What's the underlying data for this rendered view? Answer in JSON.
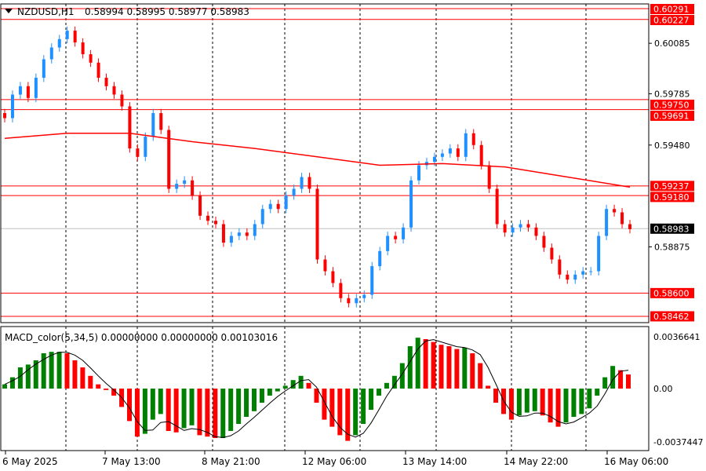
{
  "header": {
    "symbol": "NZDUSD,H1",
    "ohlc": "0.58994 0.58995 0.58977 0.58983"
  },
  "colors": {
    "bull": "#1e90ff",
    "bear": "#ff0000",
    "ma": "#ff0000",
    "level": "#ff0000",
    "hist_up": "#008000",
    "hist_down": "#ff0000",
    "signal": "#000000",
    "current": "#000000"
  },
  "price_axis": {
    "ticks": [
      "0.60085",
      "0.59785",
      "0.59480",
      "0.58875"
    ],
    "tick_values": [
      0.60085,
      0.59785,
      0.5948,
      0.58875
    ]
  },
  "levels": [
    {
      "label": "0.60291",
      "value": 0.60291
    },
    {
      "label": "0.60227",
      "value": 0.60227
    },
    {
      "label": "0.59750",
      "value": 0.5975
    },
    {
      "label": "0.59691",
      "value": 0.59691
    },
    {
      "label": "0.59237",
      "value": 0.59237
    },
    {
      "label": "0.59180",
      "value": 0.5918
    },
    {
      "label": "0.58600",
      "value": 0.586
    },
    {
      "label": "0.58462",
      "value": 0.58462
    }
  ],
  "current_price": {
    "label": "0.58983",
    "value": 0.58983
  },
  "macd": {
    "title": "MACD_color(5,34,5) 0.00000000 0.00000000 0.00103016",
    "axis_top": "0.0036641",
    "axis_zero": "0.00",
    "axis_bottom": "-0.0037447",
    "top": 0.0036641,
    "bottom": -0.0037447
  },
  "time_axis": [
    "6 May 2025",
    "7 May 13:00",
    "8 May 21:00",
    "12 May 06:00",
    "13 May 14:00",
    "14 May 22:00",
    "16 May 06:00"
  ],
  "chart_data": {
    "type": "candlestick",
    "closes": [
      0.5964,
      0.5978,
      0.5983,
      0.5976,
      0.5988,
      0.5999,
      0.6006,
      0.6011,
      0.6016,
      0.6009,
      0.6002,
      0.5997,
      0.5988,
      0.5983,
      0.5978,
      0.5971,
      0.5946,
      0.5941,
      0.5953,
      0.5967,
      0.5957,
      0.5922,
      0.5925,
      0.5927,
      0.5918,
      0.5906,
      0.5903,
      0.5901,
      0.589,
      0.5894,
      0.5896,
      0.5894,
      0.5901,
      0.591,
      0.5913,
      0.591,
      0.5918,
      0.5922,
      0.5929,
      0.5922,
      0.588,
      0.5873,
      0.5866,
      0.5857,
      0.5854,
      0.5857,
      0.5859,
      0.5876,
      0.5885,
      0.5894,
      0.5892,
      0.5899,
      0.5927,
      0.5936,
      0.5938,
      0.5941,
      0.5943,
      0.5946,
      0.5941,
      0.5955,
      0.5948,
      0.5936,
      0.5922,
      0.5901,
      0.5896,
      0.5899,
      0.5901,
      0.5899,
      0.5894,
      0.5887,
      0.588,
      0.5871,
      0.5868,
      0.5871,
      0.5873,
      0.5873,
      0.5894,
      0.591,
      0.5908,
      0.5901,
      0.5898
    ],
    "moving_average": [
      0.5952,
      0.5955,
      0.5955,
      0.595,
      0.5946,
      0.5941,
      0.5936,
      0.5937,
      0.5935,
      0.5929,
      0.5923
    ],
    "macd_histogram": [
      0.0003,
      0.0008,
      0.0015,
      0.0017,
      0.002,
      0.0025,
      0.0026,
      0.0026,
      0.0025,
      0.002,
      0.0015,
      0.0009,
      0.0003,
      -0.0001,
      -0.0005,
      -0.0013,
      -0.0023,
      -0.0034,
      -0.0032,
      -0.0022,
      -0.0018,
      -0.003,
      -0.0031,
      -0.0028,
      -0.0026,
      -0.0033,
      -0.0034,
      -0.0035,
      -0.0035,
      -0.003,
      -0.0025,
      -0.002,
      -0.0016,
      -0.001,
      -0.0005,
      -0.0002,
      0.0002,
      0.0006,
      0.0009,
      0.0004,
      -0.001,
      -0.0022,
      -0.0027,
      -0.0033,
      -0.0037,
      -0.0033,
      -0.0025,
      -0.0015,
      -0.0005,
      0.0004,
      0.0009,
      0.0018,
      0.003,
      0.0036,
      0.0035,
      0.0033,
      0.0031,
      0.003,
      0.0028,
      0.0029,
      0.0025,
      0.0018,
      0.0002,
      -0.001,
      -0.0018,
      -0.0022,
      -0.0019,
      -0.0017,
      -0.0016,
      -0.0019,
      -0.0024,
      -0.0027,
      -0.0024,
      -0.002,
      -0.0018,
      -0.0014,
      -0.0005,
      0.0008,
      0.0016,
      0.0013,
      0.001
    ]
  }
}
